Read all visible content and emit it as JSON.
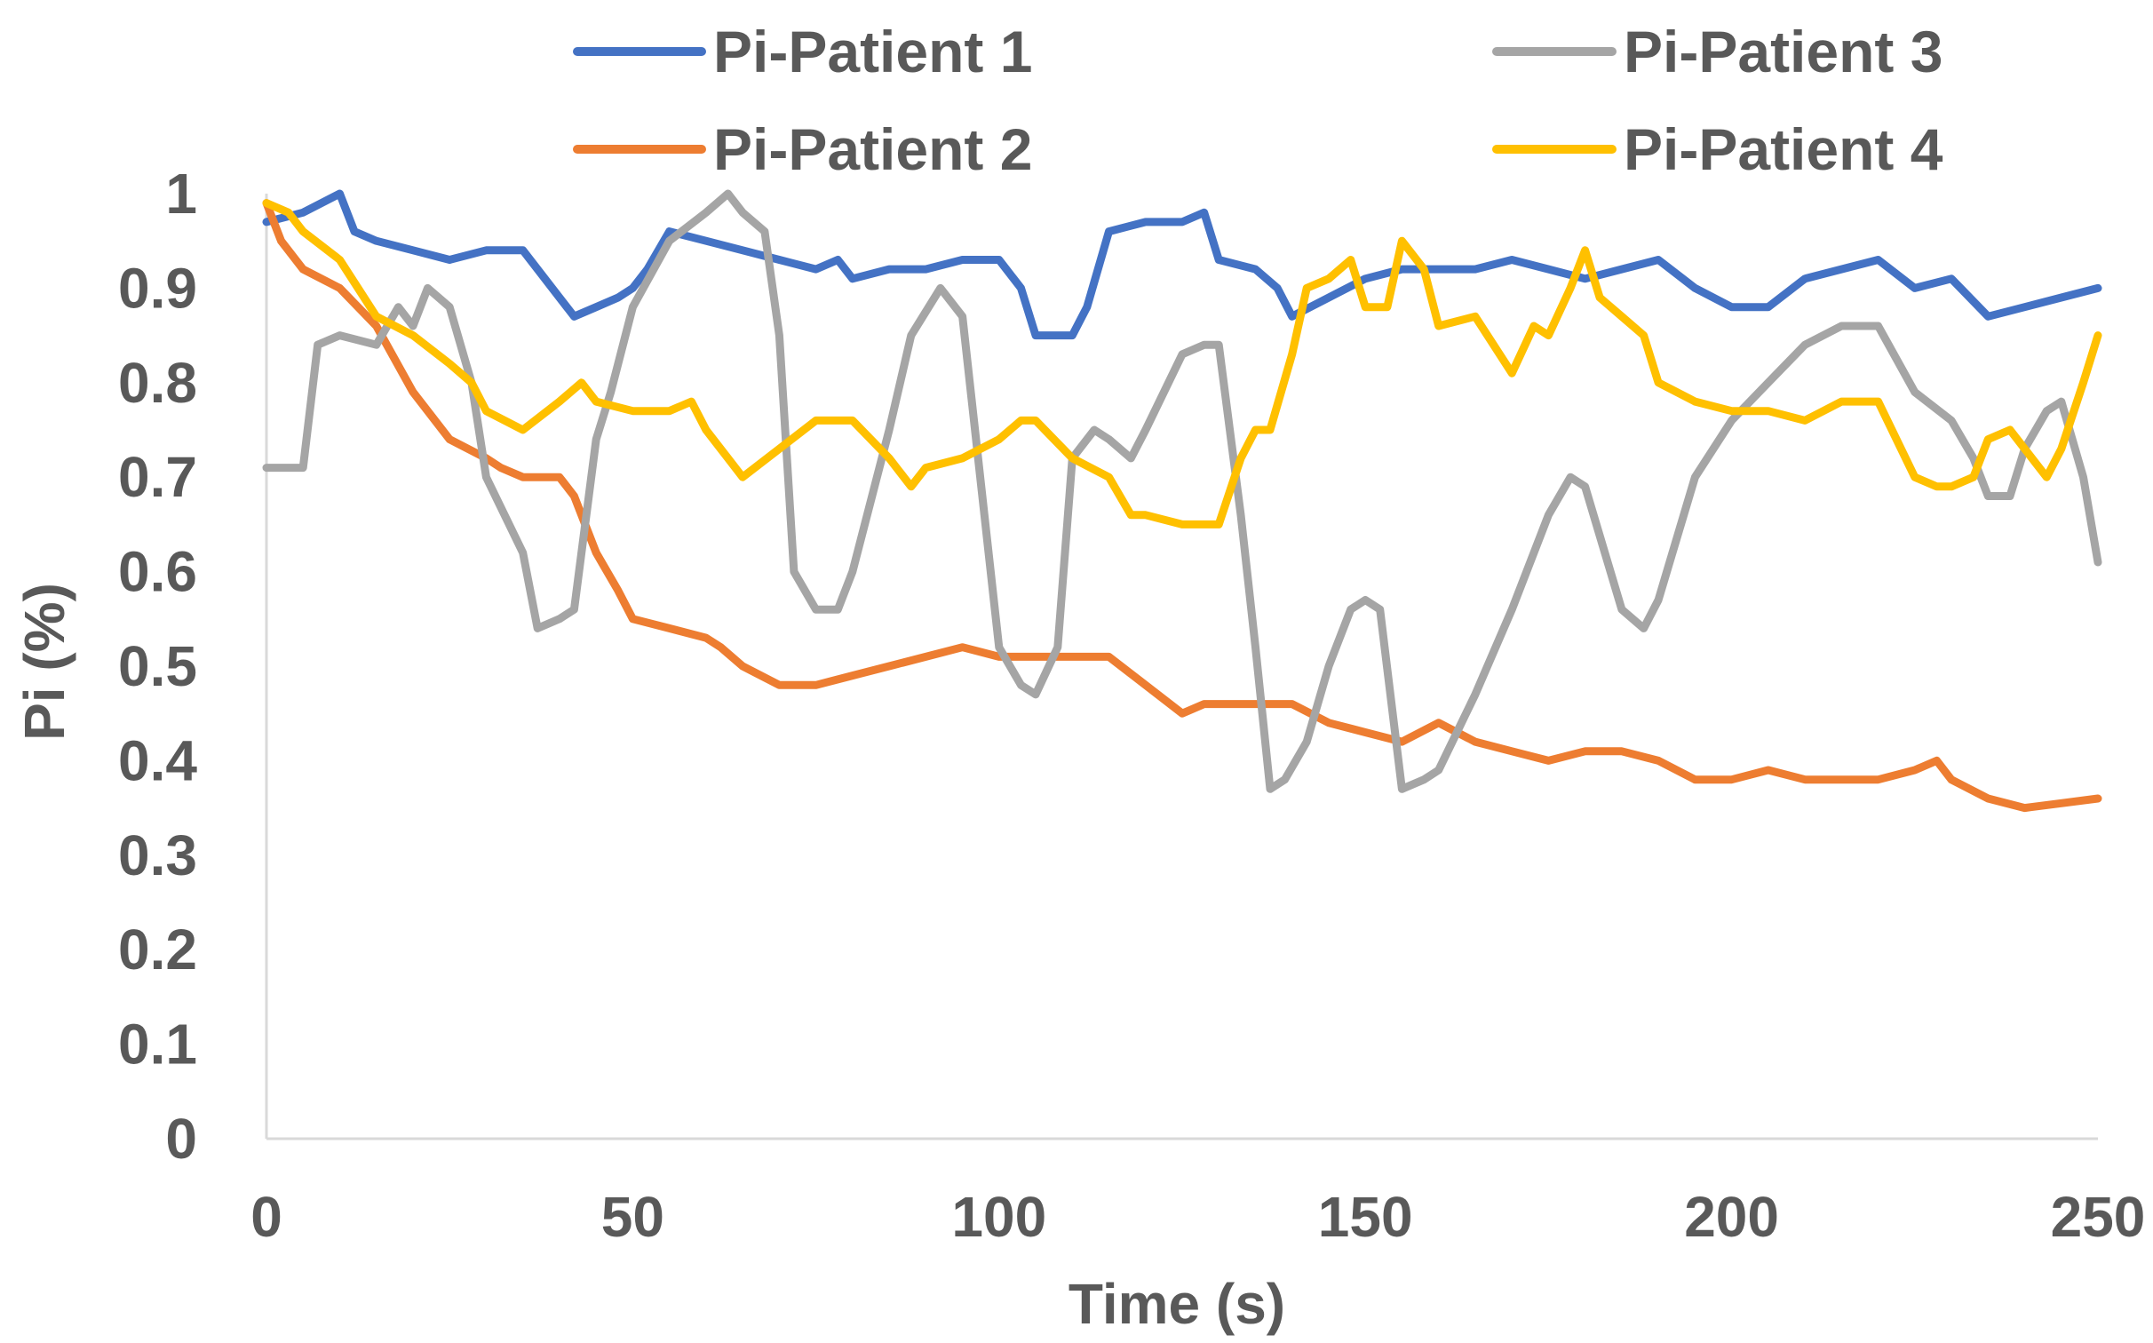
{
  "chart_data": {
    "type": "line",
    "title": "",
    "xlabel": "Time (s)",
    "ylabel": "Pi (%)",
    "xlim": [
      0,
      250
    ],
    "ylim": [
      0,
      1
    ],
    "x_ticks": [
      "0",
      "50",
      "100",
      "150",
      "200",
      "250"
    ],
    "y_ticks": [
      "0",
      "0.1",
      "0.2",
      "0.3",
      "0.4",
      "0.5",
      "0.6",
      "0.7",
      "0.8",
      "0.9",
      "1"
    ],
    "grid": false,
    "legend_position": "top",
    "series": [
      {
        "name": "Pi-Patient 1",
        "color": "#4472C4",
        "x": [
          0,
          5,
          10,
          12,
          15,
          20,
          25,
          30,
          35,
          40,
          42,
          45,
          48,
          50,
          52,
          55,
          60,
          65,
          70,
          75,
          78,
          80,
          85,
          90,
          95,
          100,
          103,
          105,
          110,
          112,
          115,
          120,
          125,
          128,
          130,
          135,
          138,
          140,
          145,
          150,
          155,
          160,
          165,
          170,
          175,
          180,
          185,
          190,
          195,
          200,
          205,
          210,
          215,
          220,
          225,
          230,
          235,
          240,
          245,
          250
        ],
        "y": [
          0.97,
          0.98,
          1.0,
          0.96,
          0.95,
          0.94,
          0.93,
          0.94,
          0.94,
          0.89,
          0.87,
          0.88,
          0.89,
          0.9,
          0.92,
          0.96,
          0.95,
          0.94,
          0.93,
          0.92,
          0.93,
          0.91,
          0.92,
          0.92,
          0.93,
          0.93,
          0.9,
          0.85,
          0.85,
          0.88,
          0.96,
          0.97,
          0.97,
          0.98,
          0.93,
          0.92,
          0.9,
          0.87,
          0.89,
          0.91,
          0.92,
          0.92,
          0.92,
          0.93,
          0.92,
          0.91,
          0.92,
          0.93,
          0.9,
          0.88,
          0.88,
          0.91,
          0.92,
          0.93,
          0.9,
          0.91,
          0.87,
          0.88,
          0.89,
          0.9
        ]
      },
      {
        "name": "Pi-Patient 2",
        "color": "#ED7D31",
        "x": [
          0,
          2,
          5,
          10,
          15,
          20,
          25,
          30,
          32,
          35,
          40,
          42,
          45,
          48,
          50,
          55,
          60,
          62,
          65,
          70,
          75,
          80,
          85,
          90,
          95,
          100,
          105,
          110,
          115,
          120,
          125,
          128,
          130,
          135,
          140,
          145,
          150,
          155,
          160,
          165,
          170,
          175,
          180,
          185,
          190,
          195,
          200,
          205,
          210,
          215,
          220,
          225,
          228,
          230,
          235,
          240,
          245,
          250
        ],
        "y": [
          0.99,
          0.95,
          0.92,
          0.9,
          0.86,
          0.79,
          0.74,
          0.72,
          0.71,
          0.7,
          0.7,
          0.68,
          0.62,
          0.58,
          0.55,
          0.54,
          0.53,
          0.52,
          0.5,
          0.48,
          0.48,
          0.49,
          0.5,
          0.51,
          0.52,
          0.51,
          0.51,
          0.51,
          0.51,
          0.48,
          0.45,
          0.46,
          0.46,
          0.46,
          0.46,
          0.44,
          0.43,
          0.42,
          0.44,
          0.42,
          0.41,
          0.4,
          0.41,
          0.41,
          0.4,
          0.38,
          0.38,
          0.39,
          0.38,
          0.38,
          0.38,
          0.39,
          0.4,
          0.38,
          0.36,
          0.35,
          0.355,
          0.36
        ]
      },
      {
        "name": "Pi-Patient 3",
        "color": "#A5A5A5",
        "x": [
          0,
          5,
          7,
          10,
          15,
          18,
          20,
          22,
          25,
          28,
          30,
          35,
          37,
          40,
          42,
          45,
          47,
          50,
          55,
          60,
          63,
          65,
          68,
          70,
          72,
          75,
          78,
          80,
          85,
          88,
          92,
          95,
          98,
          100,
          103,
          105,
          108,
          110,
          113,
          115,
          118,
          120,
          125,
          128,
          130,
          133,
          135,
          137,
          139,
          142,
          145,
          148,
          150,
          152,
          155,
          158,
          160,
          165,
          170,
          175,
          178,
          180,
          185,
          188,
          190,
          195,
          200,
          205,
          210,
          215,
          220,
          225,
          230,
          233,
          235,
          238,
          240,
          243,
          245,
          248,
          250
        ],
        "y": [
          0.71,
          0.71,
          0.84,
          0.85,
          0.84,
          0.88,
          0.86,
          0.9,
          0.88,
          0.8,
          0.7,
          0.62,
          0.54,
          0.55,
          0.56,
          0.74,
          0.79,
          0.88,
          0.95,
          0.98,
          1.0,
          0.98,
          0.96,
          0.85,
          0.6,
          0.56,
          0.56,
          0.6,
          0.75,
          0.85,
          0.9,
          0.87,
          0.66,
          0.52,
          0.48,
          0.47,
          0.52,
          0.72,
          0.75,
          0.74,
          0.72,
          0.75,
          0.83,
          0.84,
          0.84,
          0.66,
          0.52,
          0.37,
          0.38,
          0.42,
          0.5,
          0.56,
          0.57,
          0.56,
          0.37,
          0.38,
          0.39,
          0.47,
          0.56,
          0.66,
          0.7,
          0.69,
          0.56,
          0.54,
          0.57,
          0.7,
          0.76,
          0.8,
          0.84,
          0.86,
          0.86,
          0.79,
          0.76,
          0.72,
          0.68,
          0.68,
          0.73,
          0.77,
          0.78,
          0.7,
          0.61
        ]
      },
      {
        "name": "Pi-Patient 4",
        "color": "#FFC000",
        "x": [
          0,
          3,
          5,
          10,
          15,
          20,
          25,
          28,
          30,
          35,
          40,
          43,
          45,
          50,
          55,
          58,
          60,
          63,
          65,
          70,
          75,
          80,
          85,
          88,
          90,
          95,
          100,
          103,
          105,
          110,
          115,
          118,
          120,
          125,
          130,
          133,
          135,
          137,
          140,
          142,
          145,
          148,
          150,
          153,
          155,
          158,
          160,
          165,
          170,
          173,
          175,
          178,
          180,
          182,
          185,
          188,
          190,
          195,
          200,
          205,
          210,
          215,
          220,
          225,
          228,
          230,
          233,
          235,
          238,
          240,
          243,
          245,
          248,
          250
        ],
        "y": [
          0.99,
          0.98,
          0.96,
          0.93,
          0.87,
          0.85,
          0.82,
          0.8,
          0.77,
          0.75,
          0.78,
          0.8,
          0.78,
          0.77,
          0.77,
          0.78,
          0.75,
          0.72,
          0.7,
          0.73,
          0.76,
          0.76,
          0.72,
          0.69,
          0.71,
          0.72,
          0.74,
          0.76,
          0.76,
          0.72,
          0.7,
          0.66,
          0.66,
          0.65,
          0.65,
          0.72,
          0.75,
          0.75,
          0.83,
          0.9,
          0.91,
          0.93,
          0.88,
          0.88,
          0.95,
          0.92,
          0.86,
          0.87,
          0.81,
          0.86,
          0.85,
          0.9,
          0.94,
          0.89,
          0.87,
          0.85,
          0.8,
          0.78,
          0.77,
          0.77,
          0.76,
          0.78,
          0.78,
          0.7,
          0.69,
          0.69,
          0.7,
          0.74,
          0.75,
          0.73,
          0.7,
          0.73,
          0.8,
          0.85
        ]
      }
    ]
  }
}
